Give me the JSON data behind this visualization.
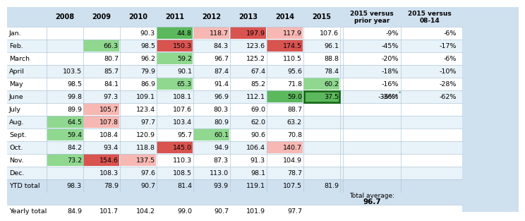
{
  "years": [
    "2008",
    "2009",
    "2010",
    "2011",
    "2012",
    "2013",
    "2014",
    "2015"
  ],
  "values": {
    "Jan.": [
      null,
      null,
      90.3,
      44.8,
      118.7,
      197.9,
      117.9,
      107.6
    ],
    "Feb.": [
      null,
      66.3,
      98.5,
      150.3,
      84.3,
      123.6,
      174.5,
      96.1
    ],
    "March": [
      null,
      80.7,
      96.2,
      59.2,
      96.7,
      125.2,
      110.5,
      88.8
    ],
    "April": [
      103.5,
      85.7,
      79.9,
      90.1,
      87.4,
      67.4,
      95.6,
      78.4
    ],
    "May": [
      98.5,
      84.1,
      86.9,
      65.3,
      91.4,
      85.2,
      71.8,
      60.2
    ],
    "June": [
      99.8,
      97.3,
      109.1,
      108.1,
      96.9,
      112.1,
      59.0,
      37.5
    ],
    "July": [
      89.9,
      105.7,
      123.4,
      107.6,
      80.3,
      69.0,
      88.7,
      null
    ],
    "Aug.": [
      64.5,
      107.8,
      97.7,
      103.4,
      80.9,
      62.0,
      63.2,
      null
    ],
    "Sept.": [
      59.4,
      108.4,
      120.9,
      95.7,
      60.1,
      90.6,
      70.8,
      null
    ],
    "Oct.": [
      84.2,
      93.4,
      118.8,
      145.0,
      94.9,
      106.4,
      140.7,
      null
    ],
    "Nov.": [
      73.2,
      154.6,
      137.5,
      110.3,
      87.3,
      91.3,
      104.9,
      null
    ],
    "Dec.": [
      null,
      108.3,
      97.6,
      108.5,
      113.0,
      98.1,
      78.7,
      null
    ],
    "YTD total": [
      98.3,
      78.9,
      90.7,
      81.4,
      93.9,
      119.1,
      107.5,
      81.9
    ],
    "Yearly total": [
      84.9,
      101.7,
      104.2,
      99.0,
      90.7,
      101.9,
      97.7,
      null
    ]
  },
  "cell_colors": {
    "Jan.": [
      null,
      null,
      null,
      "#5cb85c",
      "#f7b8b3",
      "#d9534f",
      "#f7b8b3",
      null
    ],
    "Feb.": [
      null,
      "#90d890",
      null,
      "#d9534f",
      null,
      null,
      "#d9534f",
      null
    ],
    "March": [
      null,
      null,
      null,
      "#90d890",
      null,
      null,
      null,
      null
    ],
    "April": [
      null,
      null,
      null,
      null,
      null,
      null,
      null,
      null
    ],
    "May": [
      null,
      null,
      null,
      "#90d890",
      null,
      null,
      null,
      "#90d890"
    ],
    "June": [
      null,
      null,
      null,
      null,
      null,
      null,
      "#5cb85c",
      "#5cb85c"
    ],
    "July": [
      null,
      "#f7b8b3",
      null,
      null,
      null,
      null,
      null,
      null
    ],
    "Aug.": [
      "#90d890",
      "#f7b8b3",
      null,
      null,
      null,
      null,
      null,
      null
    ],
    "Sept.": [
      "#90d890",
      null,
      null,
      null,
      "#90d890",
      null,
      null,
      null
    ],
    "Oct.": [
      null,
      null,
      null,
      "#d9534f",
      null,
      null,
      "#f7b8b3",
      null
    ],
    "Nov.": [
      "#90d890",
      "#d9534f",
      "#f7b8b3",
      null,
      null,
      null,
      null,
      null
    ],
    "Dec.": [
      null,
      null,
      null,
      null,
      null,
      null,
      null,
      null
    ],
    "YTD total": [
      null,
      null,
      null,
      null,
      null,
      null,
      null,
      null
    ],
    "Yearly total": [
      null,
      null,
      null,
      null,
      null,
      null,
      null,
      null
    ]
  },
  "versus_prior_list": [
    "-9%",
    "-45%",
    "-20%",
    "-18%",
    "-16%",
    "-36%*"
  ],
  "versus_0814_list": [
    "-6%",
    "-17%",
    "-6%",
    "-10%",
    "-28%",
    "-62%"
  ],
  "header_bg": "#cfe0ef",
  "row_bg_alt": "#e8f2f9",
  "row_bg_white": "#ffffff",
  "total_average": "96.7",
  "main_months": [
    "Jan.",
    "Feb.",
    "March",
    "April",
    "May",
    "June",
    "July",
    "Aug.",
    "Sept.",
    "Oct.",
    "Nov.",
    "Dec."
  ],
  "vs_months": [
    "Jan.",
    "Feb.",
    "March",
    "April",
    "May",
    "June"
  ]
}
